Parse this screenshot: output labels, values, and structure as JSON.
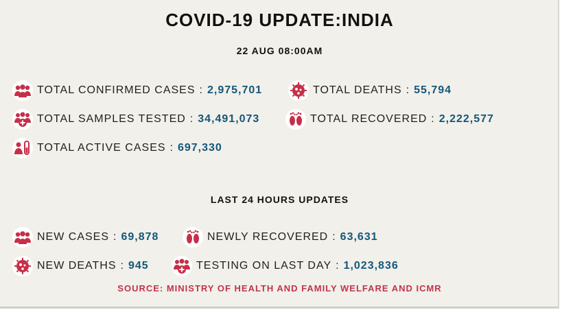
{
  "header": {
    "title": "COVID-19 UPDATE:INDIA",
    "date": "22 AUG 08:00AM"
  },
  "totals": {
    "confirmed": {
      "label": "TOTAL CONFIRMED CASES",
      "value": "2,975,701",
      "icon": "people-icon"
    },
    "deaths": {
      "label": "TOTAL DEATHS",
      "value": "55,794",
      "icon": "virus-icon"
    },
    "tested": {
      "label": "TOTAL SAMPLES TESTED",
      "value": "34,491,073",
      "icon": "people-plus-icon"
    },
    "recovered": {
      "label": "TOTAL RECOVERED",
      "value": "2,222,577",
      "icon": "footprints-icon"
    },
    "active": {
      "label": "TOTAL ACTIVE CASES",
      "value": "697,330",
      "icon": "patient-test-icon"
    }
  },
  "last24": {
    "title": "LAST 24 HOURS UPDATES",
    "new_cases": {
      "label": "NEW CASES",
      "value": "69,878",
      "icon": "people-icon"
    },
    "newly_recovered": {
      "label": "NEWLY RECOVERED",
      "value": "63,631",
      "icon": "footprints-icon"
    },
    "new_deaths": {
      "label": "NEW DEATHS",
      "value": "945",
      "icon": "virus-icon"
    },
    "testing_last_day": {
      "label": "TESTING ON LAST DAY",
      "value": "1,023,836",
      "icon": "people-plus-icon"
    }
  },
  "source": "SOURCE: MINISTRY OF HEALTH AND FAMILY WELFARE AND ICMR",
  "colors": {
    "background": "#f1f0ea",
    "icon_red": "#c62f48",
    "value_blue": "#14567a",
    "source_red": "#c2334b"
  }
}
